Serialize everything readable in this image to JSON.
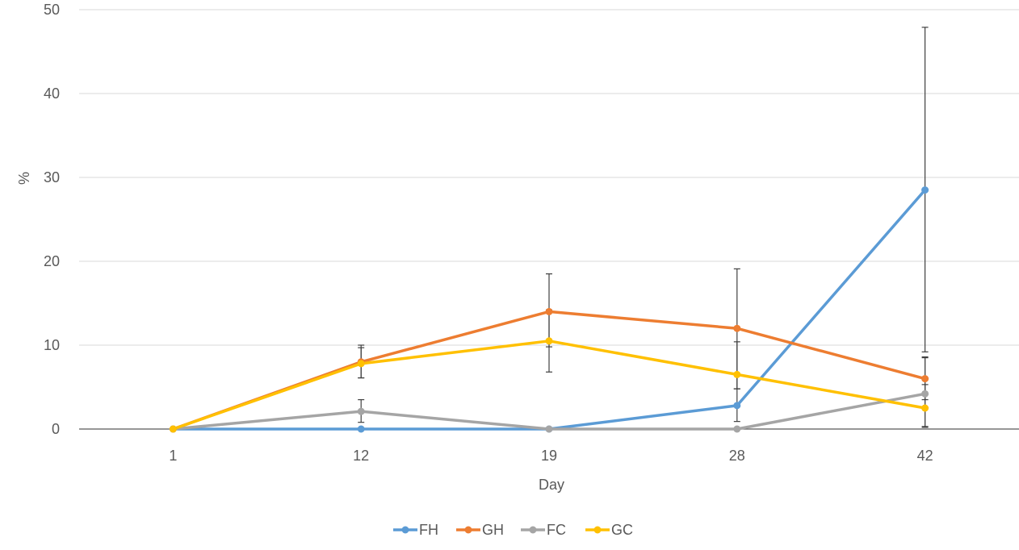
{
  "chart_data": {
    "type": "line",
    "xlabel": "Day",
    "ylabel": "%",
    "categories": [
      "1",
      "12",
      "19",
      "28",
      "42"
    ],
    "ylim": [
      0,
      50
    ],
    "yticks": [
      0,
      10,
      20,
      30,
      40,
      50
    ],
    "grid": "horizontal",
    "legend_position": "bottom",
    "series": [
      {
        "name": "FH",
        "color": "#5B9BD5",
        "values": [
          0,
          0,
          0,
          2.8,
          28.5
        ],
        "error_low": [
          0,
          0,
          0,
          1.9,
          19.3
        ],
        "error_high": [
          0,
          0,
          0,
          2.0,
          19.4
        ]
      },
      {
        "name": "GH",
        "color": "#ED7D31",
        "values": [
          0,
          8.0,
          14.0,
          12.0,
          6.0
        ],
        "error_low": [
          0,
          1.9,
          4.2,
          7.2,
          2.5
        ],
        "error_high": [
          0,
          1.7,
          4.5,
          7.1,
          2.6
        ]
      },
      {
        "name": "FC",
        "color": "#A5A5A5",
        "values": [
          0,
          2.1,
          0,
          0,
          4.2
        ],
        "error_low": [
          0,
          1.3,
          0,
          0,
          4.0
        ],
        "error_high": [
          0,
          1.4,
          0,
          0,
          4.3
        ]
      },
      {
        "name": "GC",
        "color": "#FFC000",
        "values": [
          0,
          7.8,
          10.5,
          6.5,
          2.5
        ],
        "error_low": [
          0,
          1.7,
          3.7,
          1.7,
          2.2
        ],
        "error_high": [
          0,
          2.2,
          3.7,
          3.9,
          2.8
        ]
      }
    ]
  }
}
